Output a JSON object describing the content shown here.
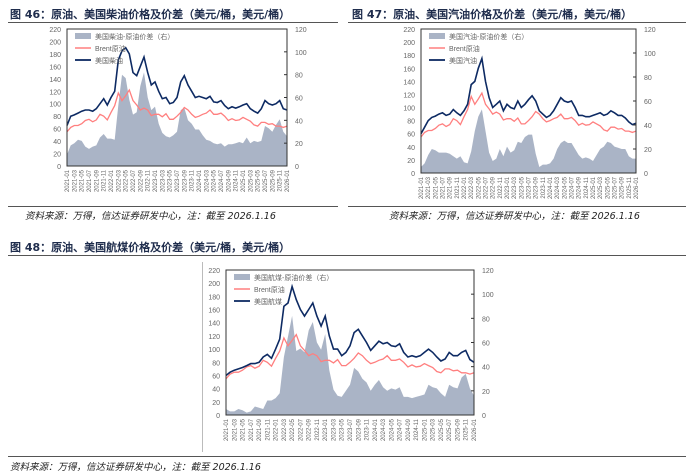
{
  "colors": {
    "spread": "#aab4c6",
    "brent": "#ff7f7f",
    "product": "#0d2a63",
    "title": "#1f2d4d"
  },
  "x_ticks": [
    "2021-01",
    "2021-03",
    "2021-05",
    "2021-07",
    "2021-09",
    "2021-11",
    "2022-01",
    "2022-03",
    "2022-05",
    "2022-07",
    "2022-09",
    "2022-11",
    "2023-01",
    "2023-03",
    "2023-05",
    "2023-07",
    "2023-09",
    "2023-11",
    "2024-01",
    "2024-03",
    "2024-05",
    "2024-07",
    "2024-09",
    "2024-11",
    "2025-01",
    "2025-03",
    "2025-05",
    "2025-07",
    "2025-09",
    "2025-11",
    "2026-01"
  ],
  "brent": [
    55,
    62,
    65,
    65,
    68,
    73,
    75,
    71,
    74,
    83,
    80,
    74,
    86,
    97,
    117,
    105,
    113,
    122,
    105,
    98,
    90,
    93,
    90,
    81,
    83,
    83,
    79,
    84,
    75,
    75,
    80,
    86,
    94,
    90,
    83,
    78,
    80,
    83,
    85,
    90,
    83,
    83,
    85,
    80,
    73,
    76,
    73,
    74,
    78,
    75,
    72,
    66,
    64,
    70,
    70,
    67,
    68,
    64,
    64,
    62,
    64
  ],
  "chart_data": [
    {
      "type": "area+line",
      "title": "图 46：原油、美国柴油价格及价差（美元/桶，美元/桶）",
      "source": "资料来源：万得，信达证券研发中心，注：截至 2026.1.16",
      "ylim_left": [
        0,
        220
      ],
      "yticks_left": [
        "0",
        "20",
        "40",
        "60",
        "80",
        "100",
        "120",
        "140",
        "160",
        "180",
        "200",
        "220"
      ],
      "ylim_right": [
        0,
        120
      ],
      "yticks_right": [
        "0",
        "20",
        "40",
        "60",
        "80",
        "100",
        "120"
      ],
      "legend": [
        "美国柴油-原油价差（右）",
        "Brent原油",
        "美国柴油"
      ],
      "legend_position": "top-left",
      "product": [
        65,
        80,
        82,
        85,
        88,
        90,
        90,
        88,
        92,
        100,
        108,
        98,
        110,
        120,
        170,
        185,
        190,
        180,
        150,
        145,
        160,
        175,
        150,
        130,
        135,
        120,
        108,
        110,
        100,
        102,
        110,
        135,
        145,
        130,
        120,
        110,
        112,
        110,
        108,
        112,
        103,
        102,
        105,
        97,
        92,
        95,
        93,
        95,
        98,
        100,
        92,
        88,
        85,
        92,
        105,
        100,
        98,
        100,
        105,
        92,
        90
      ],
      "spread": [
        10,
        18,
        20,
        23,
        22,
        17,
        15,
        17,
        18,
        25,
        28,
        24,
        24,
        23,
        53,
        80,
        77,
        58,
        45,
        47,
        70,
        82,
        60,
        49,
        52,
        37,
        29,
        26,
        25,
        27,
        30,
        49,
        51,
        40,
        37,
        32,
        32,
        27,
        23,
        22,
        20,
        19,
        20,
        17,
        19,
        19,
        20,
        21,
        20,
        25,
        20,
        22,
        21,
        22,
        35,
        33,
        30,
        36,
        41,
        30,
        26
      ]
    },
    {
      "type": "area+line",
      "title": "图 47：原油、美国汽油价格及价差（美元/桶，美元/桶）",
      "source": "资料来源：万得，信达证券研发中心，注：截至 2026.1.16",
      "ylim_left": [
        0,
        220
      ],
      "yticks_left": [
        "0",
        "20",
        "40",
        "60",
        "80",
        "100",
        "120",
        "140",
        "160",
        "180",
        "200",
        "220"
      ],
      "ylim_right": [
        0,
        120
      ],
      "yticks_right": [
        "0",
        "20",
        "40",
        "60",
        "80",
        "100",
        "120"
      ],
      "legend": [
        "美国汽油-原油价差（右）",
        "Brent原油",
        "美国汽油"
      ],
      "legend_position": "top-left",
      "product": [
        60,
        70,
        80,
        85,
        87,
        90,
        92,
        88,
        90,
        97,
        92,
        88,
        95,
        105,
        135,
        140,
        160,
        175,
        140,
        115,
        100,
        105,
        110,
        95,
        105,
        100,
        98,
        110,
        100,
        105,
        112,
        118,
        110,
        95,
        90,
        85,
        88,
        95,
        105,
        115,
        110,
        108,
        110,
        100,
        88,
        88,
        86,
        86,
        88,
        90,
        92,
        88,
        90,
        95,
        92,
        88,
        88,
        84,
        78,
        74,
        76
      ],
      "spread": [
        5,
        8,
        15,
        20,
        19,
        17,
        17,
        17,
        16,
        14,
        12,
        14,
        9,
        8,
        18,
        35,
        47,
        53,
        35,
        17,
        10,
        12,
        20,
        14,
        22,
        17,
        19,
        26,
        25,
        30,
        32,
        32,
        16,
        5,
        7,
        7,
        8,
        12,
        20,
        25,
        27,
        25,
        25,
        20,
        15,
        12,
        13,
        12,
        10,
        15,
        20,
        22,
        26,
        25,
        22,
        21,
        20,
        20,
        14,
        12,
        12
      ]
    },
    {
      "type": "area+line",
      "title": "图 48：原油、美国航煤价格及价差（美元/桶，美元/桶）",
      "source": "资料来源：万得，信达证券研发中心，注：截至 2026.1.16",
      "ylim_left": [
        0,
        220
      ],
      "yticks_left": [
        "0",
        "20",
        "40",
        "60",
        "80",
        "100",
        "120",
        "140",
        "160",
        "180",
        "200",
        "220"
      ],
      "ylim_right": [
        0,
        120
      ],
      "yticks_right": [
        "0",
        "20",
        "40",
        "60",
        "80",
        "100",
        "120"
      ],
      "legend": [
        "美国航煤-原油价差（右）",
        "Brent原油",
        "美国航煤"
      ],
      "legend_position": "top-left",
      "product": [
        60,
        65,
        68,
        70,
        72,
        75,
        78,
        78,
        80,
        88,
        92,
        86,
        100,
        115,
        165,
        170,
        195,
        175,
        160,
        150,
        160,
        170,
        150,
        135,
        150,
        120,
        100,
        100,
        90,
        95,
        105,
        125,
        130,
        120,
        110,
        98,
        105,
        112,
        108,
        110,
        105,
        104,
        108,
        95,
        88,
        90,
        88,
        90,
        95,
        100,
        95,
        88,
        82,
        85,
        95,
        90,
        90,
        95,
        98,
        84,
        80
      ],
      "spread": [
        5,
        3,
        3,
        5,
        4,
        2,
        3,
        7,
        6,
        5,
        12,
        12,
        14,
        18,
        48,
        65,
        82,
        53,
        55,
        52,
        70,
        77,
        60,
        54,
        67,
        37,
        21,
        16,
        15,
        20,
        25,
        39,
        36,
        30,
        27,
        20,
        25,
        29,
        23,
        20,
        22,
        21,
        23,
        15,
        15,
        14,
        15,
        16,
        17,
        25,
        23,
        22,
        18,
        15,
        25,
        23,
        22,
        31,
        34,
        22,
        16
      ]
    }
  ]
}
